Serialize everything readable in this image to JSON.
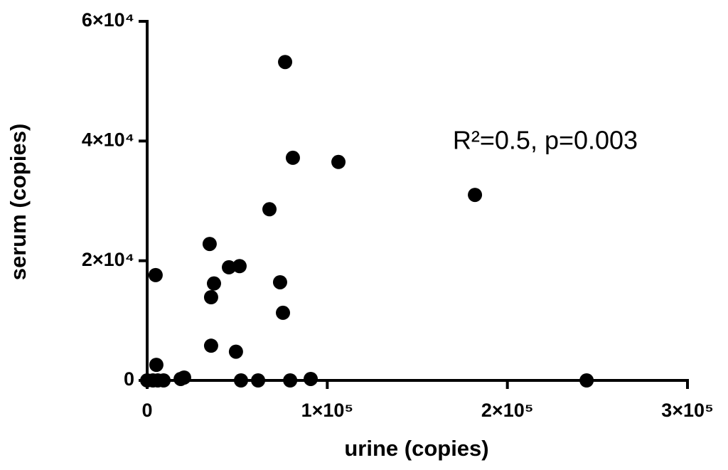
{
  "chart_data": {
    "type": "scatter",
    "x_label": "urine (copies)",
    "y_label": "serum (copies)",
    "annotation": "R²=0.5, p=0.003",
    "color": "#000000",
    "x": [
      4700,
      5100,
      0,
      3200,
      5900,
      9100,
      18600,
      20500,
      34700,
      35500,
      37100,
      35500,
      45400,
      51300,
      49300,
      52100,
      61600,
      67900,
      73800,
      75400,
      76600,
      80900,
      79400,
      90800,
      106200,
      182000,
      244000
    ],
    "values": [
      17600,
      2600,
      0,
      0,
      0,
      0,
      240,
      480,
      22800,
      13900,
      16200,
      5800,
      18900,
      19100,
      4800,
      0,
      0,
      28600,
      16400,
      11300,
      53200,
      37200,
      0,
      240,
      36500,
      31000,
      0
    ],
    "xlim": [
      0,
      300000
    ],
    "ylim": [
      0,
      60000
    ],
    "xticks": [
      0,
      {
        "value": 100000,
        "label": "1×10⁵"
      },
      {
        "value": 200000,
        "label": "2×10⁵"
      },
      {
        "value": 300000,
        "label": "3×10⁵"
      }
    ],
    "yticks": [
      0,
      {
        "value": 20000,
        "label": "2×10⁴"
      },
      {
        "value": 40000,
        "label": "4×10⁴"
      },
      {
        "value": 60000,
        "label": "6×10⁴"
      }
    ]
  }
}
